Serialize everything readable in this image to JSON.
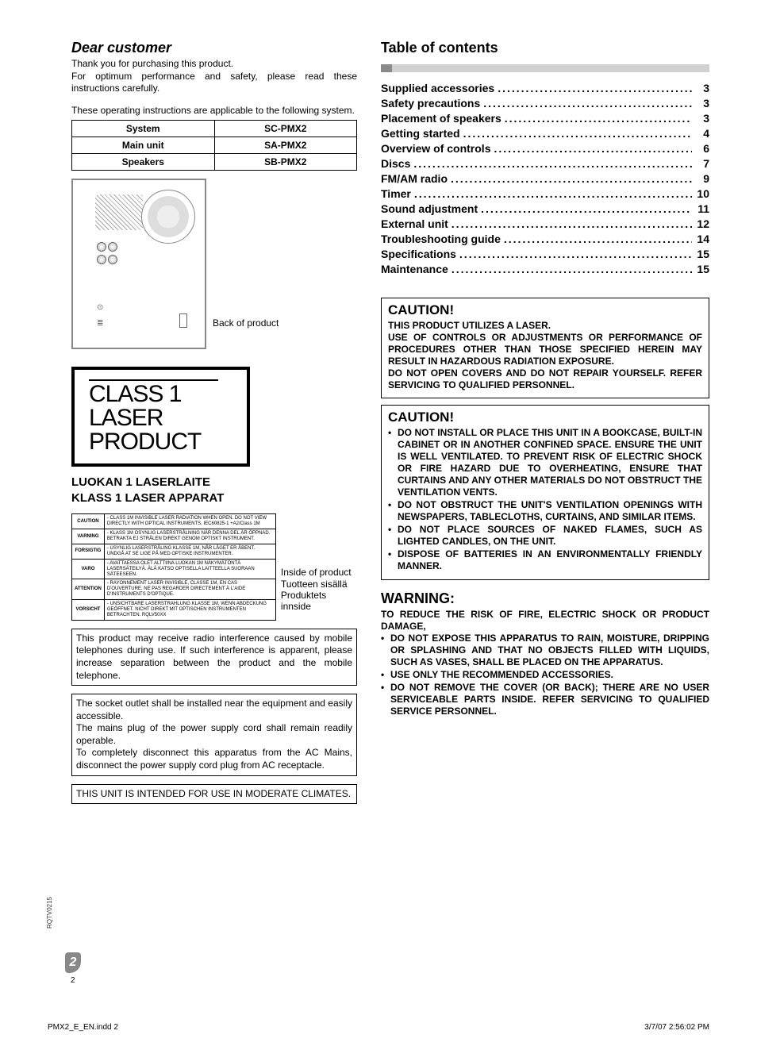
{
  "heading": "Dear customer",
  "intro_line1": "Thank you for purchasing this product.",
  "intro_line2": "For optimum performance and safety, please read these instructions carefully.",
  "intro_line3": "These operating instructions are applicable to the following system.",
  "sys_table": {
    "rows": [
      {
        "label": "System",
        "value": "SC-PMX2"
      },
      {
        "label": "Main unit",
        "value": "SA-PMX2"
      },
      {
        "label": "Speakers",
        "value": "SB-PMX2"
      }
    ]
  },
  "back_label": "Back of product",
  "class1_line1": "CLASS 1",
  "class1_line2": "LASER PRODUCT",
  "laser_sub_line1": "LUOKAN 1 LASERLAITE",
  "laser_sub_line2": "KLASS 1 LASER APPARAT",
  "multilang_warnings": [
    {
      "lang": "CAUTION",
      "text": "CLASS 1M INVISIBLE LASER RADIATION WHEN OPEN. DO NOT VIEW DIRECTLY WITH OPTICAL INSTRUMENTS.    IEC60825-1 +A2/Class 1M"
    },
    {
      "lang": "VARNING",
      "text": "KLASS 1M OSYNLIG LASERSTRÅLNING NÄR DENNA DEL ÄR ÖPPNAD. BETRAKTA EJ STRÅLEN DIREKT GENOM OPTISKT INSTRUMENT."
    },
    {
      "lang": "FORSIGTIG",
      "text": "USYNLIG LASERSTRÅLING KLASSE 1M, NÅR LÅGET ER ÅBENT. UNDGÅ AT SE LIGE PÅ MED OPTISKE INSTRUMENTER."
    },
    {
      "lang": "VARO",
      "text": "AVATTAESSA OLET ALTTIINA LUOKAN 1M NÄKYMÄTÖNTÄ LASERSÄTEILYÄ. ÄLÄ KATSO OPTISELLA LAITTEELLA SUORAAN SÄTEESEEN."
    },
    {
      "lang": "ATTENTION",
      "text": "RAYONNEMENT LASER INVISIBLE, CLASSE 1M, EN CAS D'OUVERTURE. NE PAS REGARDER DIRECTEMENT À L'AIDE D'INSTRUMENTS D'OPTIQUE."
    },
    {
      "lang": "VORSICHT",
      "text": "UNSICHTBARE LASERSTRAHLUNG KLASSE 1M, WENN ABDECKUNG GEÖFFNET. NICHT DIREKT MIT OPTISCHEN INSTRUMENTEN BETRACHTEN.              RQLV50XX"
    }
  ],
  "inside_label_1": "Inside of product",
  "inside_label_2": "Tuotteen sisällä",
  "inside_label_3": "Produktets innside",
  "notice1": "This product may receive radio interference caused by mobile telephones during use. If such interference is apparent, please increase separation between the product and the mobile telephone.",
  "notice2": "The socket outlet shall be installed near the equipment and easily accessible.\nThe mains plug of the power supply cord shall remain readily operable.\nTo completely disconnect this apparatus from the AC Mains, disconnect the power supply cord plug from AC receptacle.",
  "notice3": "THIS UNIT IS INTENDED FOR USE IN MODERATE CLIMATES.",
  "toc_title": "Table of contents",
  "toc": [
    {
      "label": "Supplied accessories",
      "page": "3"
    },
    {
      "label": "Safety precautions",
      "page": "3"
    },
    {
      "label": "Placement of speakers",
      "page": "3"
    },
    {
      "label": "Getting started",
      "page": "4"
    },
    {
      "label": "Overview of controls",
      "page": "6"
    },
    {
      "label": "Discs",
      "page": "7"
    },
    {
      "label": "FM/AM radio",
      "page": "9"
    },
    {
      "label": "Timer",
      "page": "10"
    },
    {
      "label": "Sound adjustment",
      "page": "11"
    },
    {
      "label": "External unit",
      "page": "12"
    },
    {
      "label": "Troubleshooting guide",
      "page": "14"
    },
    {
      "label": "Specifications",
      "page": "15"
    },
    {
      "label": "Maintenance",
      "page": "15"
    }
  ],
  "caution1": {
    "title": "CAUTION!",
    "body": "THIS PRODUCT UTILIZES A LASER.\nUSE OF CONTROLS OR ADJUSTMENTS OR PERFORMANCE OF PROCEDURES OTHER THAN THOSE SPECIFIED HEREIN MAY RESULT IN HAZARDOUS RADIATION EXPOSURE.\nDO NOT OPEN COVERS AND DO NOT REPAIR YOURSELF. REFER SERVICING TO QUALIFIED PERSONNEL."
  },
  "caution2": {
    "title": "CAUTION!",
    "items": [
      "DO NOT INSTALL OR PLACE THIS UNIT IN A BOOKCASE, BUILT-IN CABINET OR IN ANOTHER CONFINED SPACE. ENSURE THE UNIT IS WELL VENTILATED. TO PREVENT RISK OF ELECTRIC SHOCK OR FIRE HAZARD DUE TO OVERHEATING, ENSURE THAT CURTAINS AND ANY OTHER MATERIALS DO NOT OBSTRUCT THE VENTILATION VENTS.",
      "DO NOT OBSTRUCT THE UNIT'S VENTILATION OPENINGS WITH NEWSPAPERS, TABLECLOTHS, CURTAINS, AND SIMILAR ITEMS.",
      "DO NOT PLACE SOURCES OF NAKED FLAMES, SUCH AS LIGHTED CANDLES, ON THE UNIT.",
      "DISPOSE OF BATTERIES IN AN ENVIRONMENTALLY FRIENDLY MANNER."
    ]
  },
  "warning": {
    "title": "WARNING:",
    "lead": "TO REDUCE THE RISK OF FIRE, ELECTRIC SHOCK OR PRODUCT DAMAGE,",
    "items": [
      "DO NOT EXPOSE THIS APPARATUS TO RAIN, MOISTURE, DRIPPING OR SPLASHING AND THAT NO OBJECTS FILLED WITH LIQUIDS, SUCH AS VASES, SHALL BE PLACED ON THE APPARATUS.",
      "USE ONLY THE RECOMMENDED ACCESSORIES.",
      "DO NOT REMOVE THE COVER (OR BACK); THERE ARE NO USER SERVICEABLE PARTS INSIDE. REFER SERVICING TO QUALIFIED SERVICE PERSONNEL."
    ]
  },
  "side_ref": "RQTV0215",
  "page_num": "2",
  "page_num_plain": "2",
  "footer_left": "PMX2_E_EN.indd   2",
  "footer_right": "3/7/07   2:56:02 PM",
  "colors": {
    "rule_accent": "#8a8a8a",
    "rule_fill": "#d0d0d0",
    "page_badge": "#888888",
    "text": "#000000",
    "bg": "#ffffff"
  },
  "dots_fill": "........................................................................................................."
}
